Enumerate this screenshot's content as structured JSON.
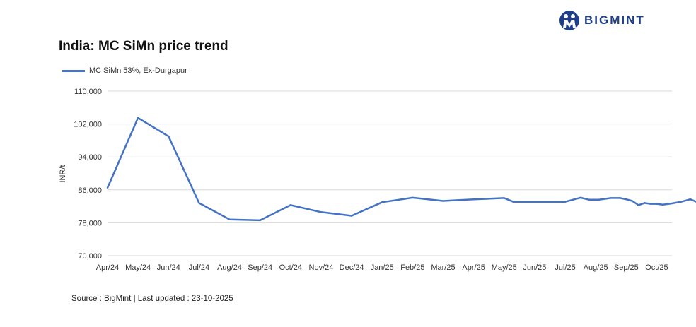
{
  "brand": {
    "name": "BIGMINT",
    "color": "#1f3f8a"
  },
  "chart_data": {
    "type": "line",
    "title": "India: MC SiMn price trend",
    "ylabel": "INR/t",
    "xlabel": "",
    "ylim": [
      70000,
      110000
    ],
    "yticks": [
      70000,
      78000,
      86000,
      94000,
      102000,
      110000
    ],
    "ytick_labels": [
      "70,000",
      "78,000",
      "86,000",
      "94,000",
      "102,000",
      "110,000"
    ],
    "x_tick_labels": [
      "Apr/24",
      "May/24",
      "Jun/24",
      "Jul/24",
      "Aug/24",
      "Sep/24",
      "Oct/24",
      "Nov/24",
      "Dec/24",
      "Jan/25",
      "Feb/25",
      "Mar/25",
      "Apr/25",
      "May/25",
      "Jun/25",
      "Jul/25",
      "Aug/25",
      "Sep/25",
      "Oct/25"
    ],
    "grid": true,
    "legend_position": "top-left",
    "series": [
      {
        "name": "MC SiMn 53%, Ex-Durgapur",
        "color": "#4472c4",
        "points": [
          {
            "x": 0.0,
            "y": 86500
          },
          {
            "x": 1.0,
            "y": 103500
          },
          {
            "x": 2.0,
            "y": 99000
          },
          {
            "x": 3.0,
            "y": 82800
          },
          {
            "x": 4.0,
            "y": 78800
          },
          {
            "x": 5.0,
            "y": 78600
          },
          {
            "x": 6.0,
            "y": 82300
          },
          {
            "x": 7.0,
            "y": 80600
          },
          {
            "x": 8.0,
            "y": 79700
          },
          {
            "x": 9.0,
            "y": 83000
          },
          {
            "x": 10.0,
            "y": 84100
          },
          {
            "x": 11.0,
            "y": 83300
          },
          {
            "x": 12.0,
            "y": 83700
          },
          {
            "x": 13.0,
            "y": 84000
          },
          {
            "x": 13.3,
            "y": 83100
          },
          {
            "x": 14.0,
            "y": 83100
          },
          {
            "x": 15.0,
            "y": 83100
          },
          {
            "x": 15.5,
            "y": 84100
          },
          {
            "x": 15.8,
            "y": 83600
          },
          {
            "x": 16.1,
            "y": 83600
          },
          {
            "x": 16.5,
            "y": 84000
          },
          {
            "x": 16.8,
            "y": 84000
          },
          {
            "x": 17.0,
            "y": 83700
          },
          {
            "x": 17.2,
            "y": 83300
          },
          {
            "x": 17.4,
            "y": 82300
          },
          {
            "x": 17.6,
            "y": 82800
          },
          {
            "x": 17.8,
            "y": 82600
          },
          {
            "x": 18.0,
            "y": 82600
          },
          {
            "x": 18.2,
            "y": 82400
          },
          {
            "x": 18.5,
            "y": 82700
          },
          {
            "x": 18.8,
            "y": 83100
          },
          {
            "x": 19.1,
            "y": 83700
          },
          {
            "x": 19.4,
            "y": 82800
          }
        ]
      }
    ]
  },
  "source": "Source : BigMint | Last updated : 23-10-2025"
}
